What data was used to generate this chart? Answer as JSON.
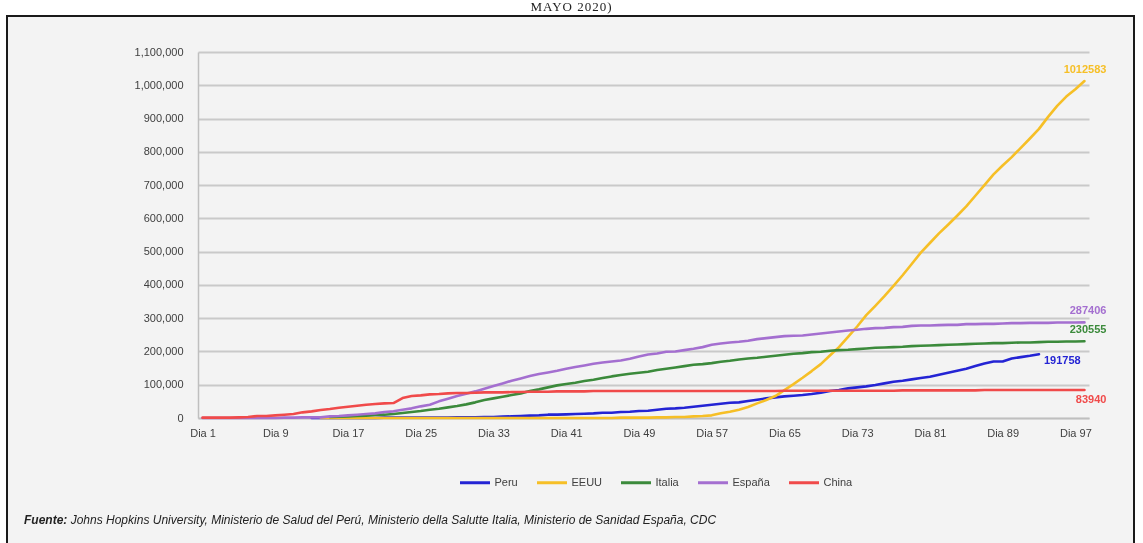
{
  "chart_data": {
    "type": "line",
    "title": "MAYO 2020)",
    "annotations": [
      "Fuente: Johns Hopkins University, Ministerio de Salud del Perú, Ministerio della Salutte Italia, Ministerio de Sanidad España, CDC"
    ],
    "categories": [
      "Dia 1",
      null,
      null,
      null,
      null,
      null,
      null,
      null,
      "Dia 9",
      null,
      null,
      null,
      null,
      null,
      null,
      null,
      "Dia 17",
      null,
      null,
      null,
      null,
      null,
      null,
      null,
      "Dia 25",
      null,
      null,
      null,
      null,
      null,
      null,
      null,
      "Dia 33",
      null,
      null,
      null,
      null,
      null,
      null,
      null,
      "Dia 41",
      null,
      null,
      null,
      null,
      null,
      null,
      null,
      "Dia 49",
      null,
      null,
      null,
      null,
      null,
      null,
      null,
      "Dia 57",
      null,
      null,
      null,
      null,
      null,
      null,
      null,
      "Dia 65",
      null,
      null,
      null,
      null,
      null,
      null,
      null,
      "Dia 73",
      null,
      null,
      null,
      null,
      null,
      null,
      null,
      "Dia 81",
      null,
      null,
      null,
      null,
      null,
      null,
      null,
      "Dia 89",
      null,
      null,
      null,
      null,
      null,
      null,
      null,
      "Dia 97",
      null
    ],
    "ylim": [
      0,
      1100000
    ],
    "yticks": [
      0,
      {
        "value": 100000,
        "label": "100,000"
      },
      {
        "value": 200000,
        "label": "200,000"
      },
      {
        "value": 300000,
        "label": "300,000"
      },
      {
        "value": 400000,
        "label": "400,000"
      },
      {
        "value": 500000,
        "label": "500,000"
      },
      {
        "value": 600000,
        "label": "600,000"
      },
      {
        "value": 700000,
        "label": "700,000"
      },
      {
        "value": 800000,
        "label": "800,000"
      },
      {
        "value": 900000,
        "label": "900,000"
      },
      {
        "value": 1000000,
        "label": "1,000,000"
      },
      {
        "value": 1100000,
        "label": "1,100,000"
      }
    ],
    "grid": "y",
    "legend": "bottom",
    "series": [
      {
        "name": "Peru",
        "color": "#2424d4",
        "values": [
          null,
          null,
          null,
          null,
          null,
          null,
          null,
          null,
          null,
          null,
          null,
          null,
          0,
          0,
          0,
          0,
          0,
          0,
          0,
          0,
          1000,
          1000,
          1000,
          1000,
          1000,
          1000,
          1000,
          1000,
          2000,
          2000,
          2000,
          3000,
          3000,
          4000,
          5000,
          6000,
          7000,
          8000,
          10000,
          10000,
          11000,
          12000,
          13000,
          14000,
          16000,
          16000,
          18000,
          19000,
          21000,
          22000,
          25000,
          28000,
          29000,
          31000,
          34000,
          37000,
          40000,
          43000,
          46000,
          47000,
          51000,
          55000,
          59000,
          62000,
          65000,
          67000,
          69000,
          72000,
          76000,
          81000,
          84000,
          89000,
          92000,
          95000,
          99000,
          104000,
          109000,
          112000,
          116000,
          120000,
          124000,
          130000,
          136000,
          142000,
          148000,
          156000,
          164000,
          170000,
          170000,
          179000,
          183000,
          187000,
          191758,
          null,
          null,
          null,
          null,
          null
        ],
        "value_labels": [
          null,
          null,
          null,
          null,
          null,
          null,
          null,
          null,
          null,
          null,
          null,
          null,
          null,
          null,
          null,
          null,
          null,
          null,
          null,
          null,
          null,
          null,
          null,
          null,
          null,
          null,
          null,
          null,
          null,
          null,
          null,
          null,
          null,
          null,
          null,
          null,
          null,
          null,
          null,
          null,
          null,
          null,
          null,
          null,
          null,
          null,
          null,
          null,
          null,
          null,
          null,
          null,
          null,
          null,
          null,
          null,
          null,
          null,
          null,
          null,
          null,
          null,
          null,
          null,
          null,
          null,
          null,
          null,
          null,
          null,
          null,
          null,
          null,
          null,
          null,
          null,
          null,
          null,
          null,
          null,
          null,
          null,
          null,
          null,
          null,
          null,
          null,
          null,
          null,
          null,
          null,
          null,
          "191758",
          null,
          null,
          null,
          null,
          null
        ]
      },
      {
        "name": "EEUU",
        "color": "#f6bf26",
        "values": [
          null,
          null,
          null,
          null,
          null,
          null,
          null,
          null,
          null,
          null,
          null,
          null,
          null,
          0,
          0,
          0,
          0,
          0,
          0,
          0,
          0,
          0,
          0,
          0,
          0,
          0,
          0,
          0,
          0,
          0,
          0,
          0,
          0,
          0,
          0,
          0,
          0,
          0,
          0,
          0,
          0,
          0,
          0,
          0,
          0,
          0,
          1000,
          1000,
          1000,
          1000,
          2000,
          2000,
          3000,
          3000,
          5000,
          6000,
          8000,
          14000,
          19000,
          25000,
          33000,
          44000,
          54000,
          66000,
          84000,
          102000,
          121000,
          141000,
          162000,
          188000,
          213000,
          244000,
          275000,
          309000,
          337000,
          366000,
          397000,
          429000,
          463000,
          497000,
          526000,
          555000,
          581000,
          608000,
          636000,
          668000,
          700000,
          732000,
          759000,
          784000,
          812000,
          840000,
          869000,
          905000,
          938000,
          966000,
          988000,
          1012583
        ],
        "value_labels": [
          null,
          null,
          null,
          null,
          null,
          null,
          null,
          null,
          null,
          null,
          null,
          null,
          null,
          null,
          null,
          null,
          null,
          null,
          null,
          null,
          null,
          null,
          null,
          null,
          null,
          null,
          null,
          null,
          null,
          null,
          null,
          null,
          null,
          null,
          null,
          null,
          null,
          null,
          null,
          null,
          null,
          null,
          null,
          null,
          null,
          null,
          null,
          null,
          null,
          null,
          null,
          null,
          null,
          null,
          null,
          null,
          null,
          null,
          null,
          null,
          null,
          null,
          null,
          null,
          null,
          null,
          null,
          null,
          null,
          null,
          null,
          null,
          null,
          null,
          null,
          null,
          null,
          null,
          null,
          null,
          null,
          null,
          null,
          null,
          null,
          null,
          null,
          null,
          null,
          null,
          null,
          null,
          null,
          null,
          null,
          null,
          null,
          "1012583"
        ]
      },
      {
        "name": "Italia",
        "color": "#3b8a3b",
        "values": [
          null,
          null,
          null,
          null,
          null,
          null,
          null,
          null,
          null,
          null,
          null,
          null,
          null,
          null,
          3000,
          4000,
          5000,
          6000,
          7000,
          9000,
          10000,
          12000,
          15000,
          18000,
          21000,
          25000,
          28000,
          32000,
          36000,
          41000,
          47000,
          54000,
          59000,
          64000,
          69000,
          74000,
          81000,
          86000,
          92000,
          98000,
          102000,
          106000,
          111000,
          115000,
          120000,
          125000,
          129000,
          133000,
          136000,
          139000,
          144000,
          148000,
          152000,
          156000,
          160000,
          162000,
          165000,
          169000,
          172000,
          176000,
          179000,
          181000,
          184000,
          187000,
          190000,
          193000,
          195000,
          198000,
          199000,
          202000,
          204000,
          205000,
          207000,
          209000,
          211000,
          212000,
          213000,
          214000,
          216000,
          217000,
          218000,
          219000,
          220000,
          221000,
          222000,
          223000,
          224000,
          225000,
          225000,
          226000,
          227000,
          227000,
          228000,
          229000,
          229000,
          230000,
          230000,
          230555
        ],
        "value_labels": [
          null,
          null,
          null,
          null,
          null,
          null,
          null,
          null,
          null,
          null,
          null,
          null,
          null,
          null,
          null,
          null,
          null,
          null,
          null,
          null,
          null,
          null,
          null,
          null,
          null,
          null,
          null,
          null,
          null,
          null,
          null,
          null,
          null,
          null,
          null,
          null,
          null,
          null,
          null,
          null,
          null,
          null,
          null,
          null,
          null,
          null,
          null,
          null,
          null,
          null,
          null,
          null,
          null,
          null,
          null,
          null,
          null,
          null,
          null,
          null,
          null,
          null,
          null,
          null,
          null,
          null,
          null,
          null,
          null,
          null,
          null,
          null,
          null,
          null,
          null,
          null,
          null,
          null,
          null,
          null,
          null,
          null,
          null,
          null,
          null,
          null,
          null,
          null,
          null,
          null,
          null,
          null,
          null,
          null,
          null,
          null,
          null,
          "230555"
        ]
      },
      {
        "name": "España",
        "color": "#a46fd0",
        "values": [
          0,
          0,
          0,
          0,
          0,
          0,
          0,
          0,
          0,
          1000,
          1000,
          2000,
          2000,
          2000,
          5000,
          6000,
          8000,
          10000,
          12000,
          14000,
          18000,
          20000,
          25000,
          29000,
          35000,
          40000,
          50000,
          58000,
          66000,
          73000,
          80000,
          88000,
          96000,
          104000,
          112000,
          119000,
          126000,
          132000,
          137000,
          142000,
          148000,
          153000,
          158000,
          163000,
          167000,
          170000,
          173000,
          178000,
          185000,
          191000,
          194000,
          199000,
          200000,
          204000,
          208000,
          213000,
          220000,
          224000,
          227000,
          229000,
          232000,
          237000,
          240000,
          243000,
          246000,
          247000,
          248000,
          251000,
          254000,
          257000,
          260000,
          263000,
          265000,
          268000,
          270000,
          271000,
          273000,
          274000,
          277000,
          278000,
          278000,
          279000,
          280000,
          280000,
          282000,
          282000,
          283000,
          283000,
          284000,
          285000,
          285000,
          286000,
          286000,
          286000,
          287000,
          287000,
          287000,
          287406
        ],
        "value_labels": [
          null,
          null,
          null,
          null,
          null,
          null,
          null,
          null,
          null,
          null,
          null,
          null,
          null,
          null,
          null,
          null,
          null,
          null,
          null,
          null,
          null,
          null,
          null,
          null,
          null,
          null,
          null,
          null,
          null,
          null,
          null,
          null,
          null,
          null,
          null,
          null,
          null,
          null,
          null,
          null,
          null,
          null,
          null,
          null,
          null,
          null,
          null,
          null,
          null,
          null,
          null,
          null,
          null,
          null,
          null,
          null,
          null,
          null,
          null,
          null,
          null,
          null,
          null,
          null,
          null,
          null,
          null,
          null,
          null,
          null,
          null,
          null,
          null,
          null,
          null,
          null,
          null,
          null,
          null,
          null,
          null,
          null,
          null,
          null,
          null,
          null,
          null,
          null,
          null,
          null,
          null,
          null,
          null,
          null,
          null,
          null,
          null,
          "287406"
        ]
      },
      {
        "name": "China",
        "color": "#f04a4a",
        "values": [
          1000,
          1000,
          1000,
          1000,
          2000,
          3000,
          6000,
          6000,
          8000,
          10000,
          12000,
          17000,
          20000,
          24000,
          27000,
          31000,
          34000,
          37000,
          40000,
          42000,
          44000,
          45000,
          60000,
          66000,
          68000,
          71000,
          72000,
          74000,
          75000,
          75000,
          76000,
          77000,
          77000,
          77000,
          78000,
          78000,
          79000,
          79000,
          79000,
          80000,
          80000,
          80000,
          80000,
          81000,
          81000,
          81000,
          81000,
          81000,
          81000,
          81000,
          81000,
          81000,
          81000,
          81000,
          81000,
          81000,
          81000,
          81000,
          81000,
          81000,
          81000,
          81000,
          81000,
          81000,
          82000,
          82000,
          82000,
          82000,
          82000,
          82000,
          82000,
          82000,
          82000,
          82000,
          82000,
          82000,
          82000,
          83000,
          83000,
          83000,
          83000,
          83000,
          83000,
          83000,
          83000,
          83000,
          84000,
          84000,
          84000,
          84000,
          84000,
          84000,
          84000,
          84000,
          84000,
          84000,
          84000,
          83940
        ],
        "value_labels": [
          null,
          null,
          null,
          null,
          null,
          null,
          null,
          null,
          null,
          null,
          null,
          null,
          null,
          null,
          null,
          null,
          null,
          null,
          null,
          null,
          null,
          null,
          null,
          null,
          null,
          null,
          null,
          null,
          null,
          null,
          null,
          null,
          null,
          null,
          null,
          null,
          null,
          null,
          null,
          null,
          null,
          null,
          null,
          null,
          null,
          null,
          null,
          null,
          null,
          null,
          null,
          null,
          null,
          null,
          null,
          null,
          null,
          null,
          null,
          null,
          null,
          null,
          null,
          null,
          null,
          null,
          null,
          null,
          null,
          null,
          null,
          null,
          null,
          null,
          null,
          null,
          null,
          null,
          null,
          null,
          null,
          null,
          null,
          null,
          null,
          null,
          null,
          null,
          null,
          null,
          null,
          null,
          null,
          null,
          null,
          null,
          null,
          "83940"
        ]
      }
    ]
  }
}
